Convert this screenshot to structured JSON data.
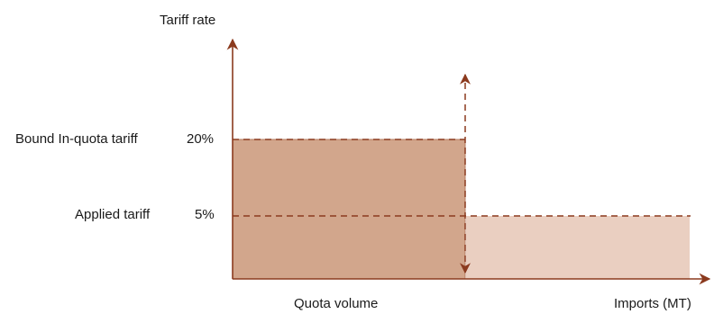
{
  "labels": {
    "y_axis_title": "Tariff rate",
    "x_axis_title": "Imports (MT)",
    "quota_volume": "Quota volume",
    "bound_label": "Bound In-quota tariff",
    "bound_value": "20%",
    "applied_label": "Applied tariff",
    "applied_value": "5%"
  },
  "tariffs": {
    "bound_in_quota_pct": 20,
    "applied_pct": 5
  },
  "colors": {
    "axis": "#8b3a1e",
    "in_quota_fill": "#d2a68c",
    "out_quota_fill": "#eacfc1",
    "in_quota_border": "#b47a5d"
  }
}
